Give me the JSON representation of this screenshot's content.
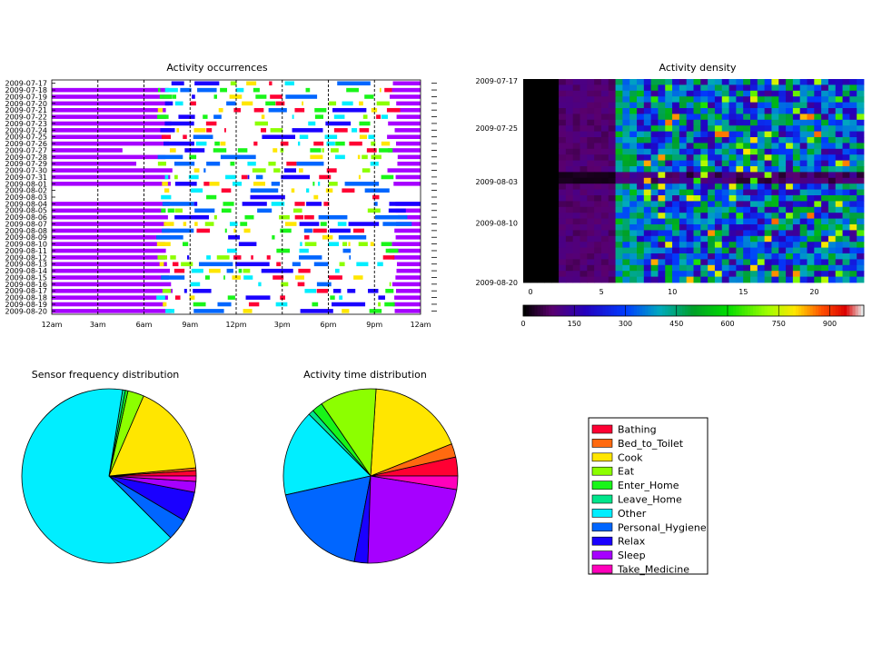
{
  "chart_data": [
    {
      "type": "bar",
      "title": "Activity occurrences",
      "y_categories": [
        "2009-07-17",
        "2009-07-18",
        "2009-07-19",
        "2009-07-20",
        "2009-07-21",
        "2009-07-22",
        "2009-07-23",
        "2009-07-24",
        "2009-07-25",
        "2009-07-26",
        "2009-07-27",
        "2009-07-28",
        "2009-07-29",
        "2009-07-30",
        "2009-07-31",
        "2009-08-01",
        "2009-08-02",
        "2009-08-03",
        "2009-08-04",
        "2009-08-05",
        "2009-08-06",
        "2009-08-07",
        "2009-08-08",
        "2009-08-09",
        "2009-08-10",
        "2009-08-11",
        "2009-08-12",
        "2009-08-13",
        "2009-08-14",
        "2009-08-15",
        "2009-08-16",
        "2009-08-17",
        "2009-08-18",
        "2009-08-19",
        "2009-08-20"
      ],
      "x_ticks": [
        "12am",
        "3am",
        "6am",
        "9am",
        "12pm",
        "3pm",
        "6pm",
        "9pm",
        "12am"
      ],
      "xlim_hours": [
        0,
        24
      ],
      "grid": "vertical dashed lines every 3 hours"
    },
    {
      "type": "heatmap",
      "title": "Activity density",
      "y_ticks": [
        "2009-07-17",
        "2009-07-25",
        "2009-08-03",
        "2009-08-10",
        "2009-08-20"
      ],
      "x_ticks": [
        "0",
        "5",
        "10",
        "15",
        "20"
      ],
      "xlim": [
        0,
        24
      ],
      "colorbar_ticks": [
        "0",
        "150",
        "300",
        "450",
        "600",
        "750",
        "900"
      ],
      "colorbar_range": [
        0,
        1000
      ],
      "colormap": "nipy_spectral"
    },
    {
      "type": "pie",
      "title": "Sensor frequency distribution",
      "labels": [
        "Bathing",
        "Bed_to_Toilet",
        "Cook",
        "Eat",
        "Enter_Home",
        "Leave_Home",
        "Other",
        "Personal_Hygiene",
        "Relax",
        "Sleep",
        "Take_Medicine"
      ],
      "values": [
        1.0,
        0.5,
        17.0,
        3.0,
        0.5,
        0.5,
        65.0,
        4.0,
        5.5,
        2.0,
        1.0
      ]
    },
    {
      "type": "pie",
      "title": "Activity time distribution",
      "labels": [
        "Bathing",
        "Bed_to_Toilet",
        "Cook",
        "Eat",
        "Enter_Home",
        "Leave_Home",
        "Other",
        "Personal_Hygiene",
        "Relax",
        "Sleep",
        "Take_Medicine"
      ],
      "values": [
        3.5,
        2.5,
        18.0,
        10.5,
        2.0,
        1.0,
        16.0,
        18.5,
        2.5,
        23.0,
        2.5
      ]
    }
  ],
  "legend": {
    "placement": "right of pies",
    "items": [
      {
        "label": "Bathing",
        "color": "#ff0033"
      },
      {
        "label": "Bed_to_Toilet",
        "color": "#ff6a10"
      },
      {
        "label": "Cook",
        "color": "#ffe600"
      },
      {
        "label": "Eat",
        "color": "#8cff00"
      },
      {
        "label": "Enter_Home",
        "color": "#19f519"
      },
      {
        "label": "Leave_Home",
        "color": "#00e68c"
      },
      {
        "label": "Other",
        "color": "#00eeff"
      },
      {
        "label": "Personal_Hygiene",
        "color": "#0066ff"
      },
      {
        "label": "Relax",
        "color": "#1a00ff"
      },
      {
        "label": "Sleep",
        "color": "#a600ff"
      },
      {
        "label": "Take_Medicine",
        "color": "#ff00bb"
      }
    ]
  }
}
